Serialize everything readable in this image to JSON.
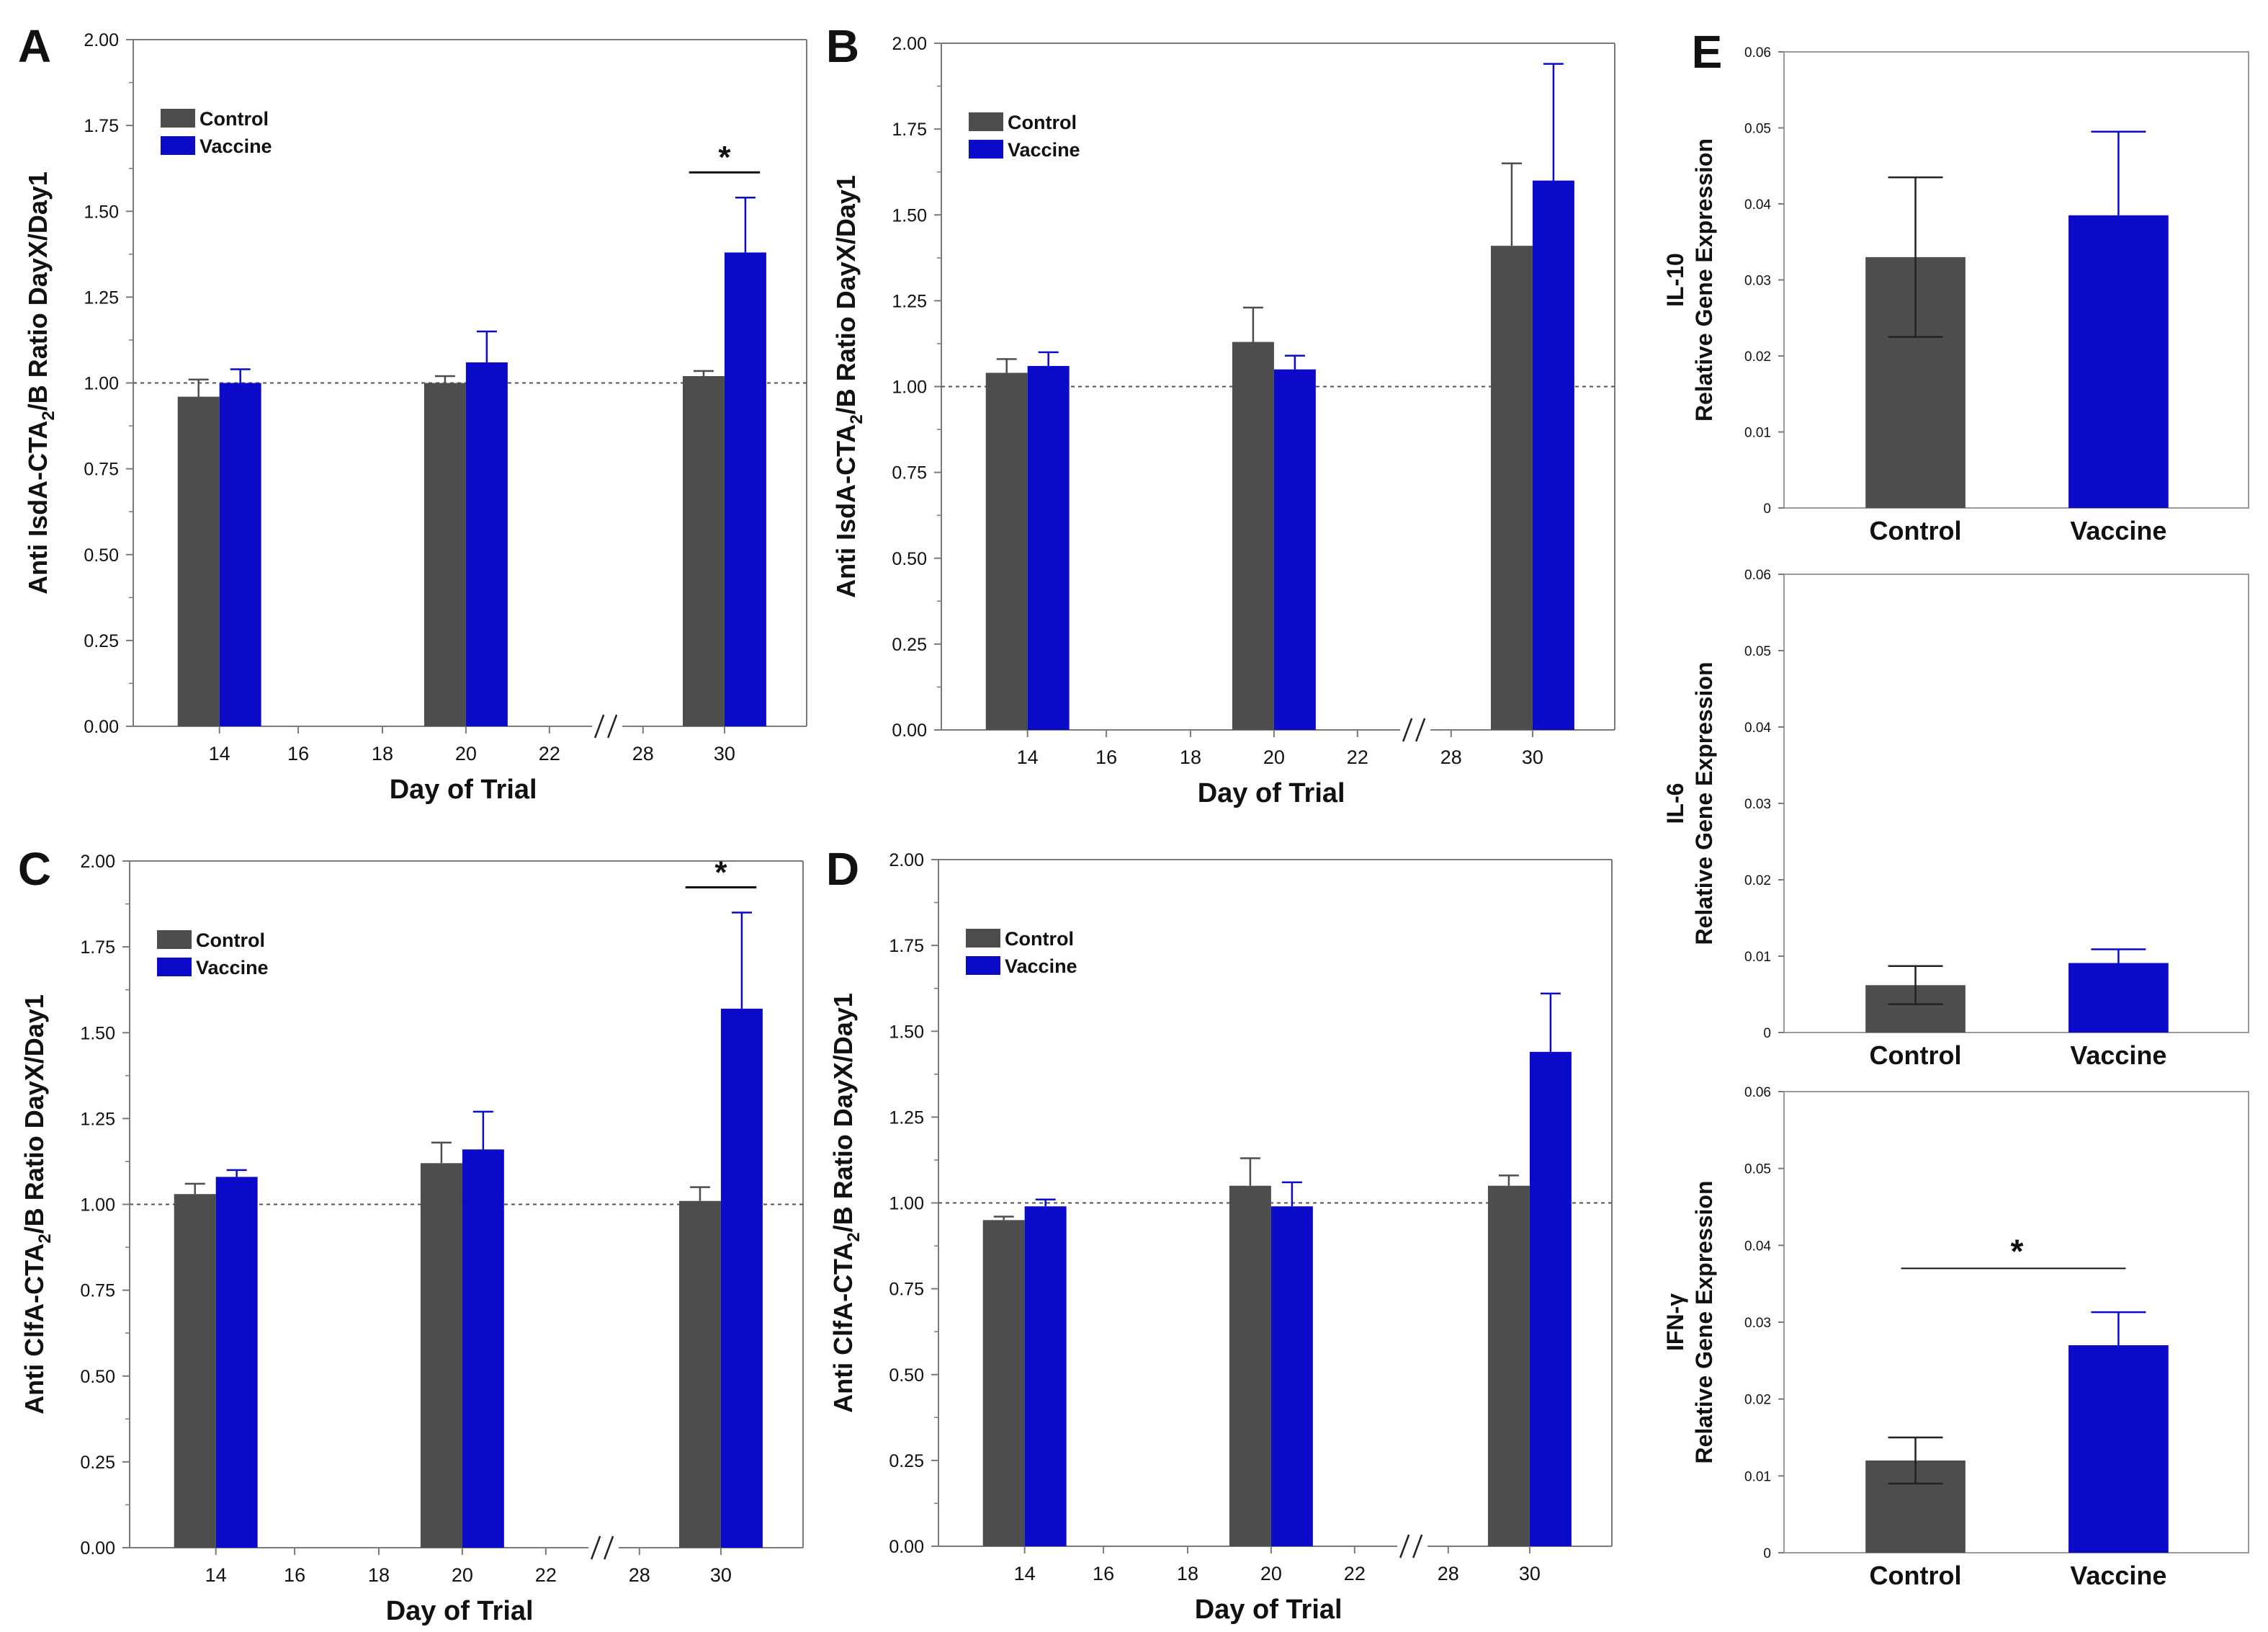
{
  "colors": {
    "control": "#4d4d4d",
    "vaccine": "#0a0ac8",
    "axis": "#7a7a7a",
    "text": "#111111"
  },
  "chart_data": [
    {
      "panel": "A",
      "type": "bar",
      "xlabel": "Day of Trial",
      "ylabel_parts": [
        "Anti IsdA-CTA",
        "2",
        "/B Ratio DayX/Day1"
      ],
      "ylim": [
        0,
        2
      ],
      "yticks": [
        "0.00",
        "0.25",
        "0.50",
        "0.75",
        "1.00",
        "1.25",
        "1.50",
        "1.75",
        "2.00"
      ],
      "xticks": [
        "14",
        "16",
        "18",
        "20",
        "22",
        "28",
        "30"
      ],
      "reference_line": 1.0,
      "legend": [
        "Control",
        "Vaccine"
      ],
      "legend_position": "top-left",
      "categories": [
        "14",
        "20",
        "30"
      ],
      "series": [
        {
          "name": "Control",
          "values": [
            0.96,
            1.0,
            1.02
          ],
          "errors": [
            0.05,
            0.02,
            0.015
          ]
        },
        {
          "name": "Vaccine",
          "values": [
            1.0,
            1.06,
            1.38
          ],
          "errors": [
            0.04,
            0.09,
            0.16
          ]
        }
      ],
      "significance": [
        {
          "category": "30",
          "label": "*"
        }
      ]
    },
    {
      "panel": "B",
      "type": "bar",
      "xlabel": "Day of Trial",
      "ylabel_parts": [
        "Anti IsdA-CTA",
        "2",
        "/B Ratio DayX/Day1"
      ],
      "ylim": [
        0,
        2
      ],
      "yticks": [
        "0.00",
        "0.25",
        "0.50",
        "0.75",
        "1.00",
        "1.25",
        "1.50",
        "1.75",
        "2.00"
      ],
      "xticks": [
        "14",
        "16",
        "18",
        "20",
        "22",
        "28",
        "30"
      ],
      "reference_line": 1.0,
      "legend": [
        "Control",
        "Vaccine"
      ],
      "legend_position": "top-left",
      "categories": [
        "14",
        "20",
        "30"
      ],
      "series": [
        {
          "name": "Control",
          "values": [
            1.04,
            1.13,
            1.41
          ],
          "errors": [
            0.04,
            0.1,
            0.24
          ]
        },
        {
          "name": "Vaccine",
          "values": [
            1.06,
            1.05,
            1.6
          ],
          "errors": [
            0.04,
            0.04,
            0.34
          ]
        }
      ],
      "significance": []
    },
    {
      "panel": "C",
      "type": "bar",
      "xlabel": "Day of Trial",
      "ylabel_parts": [
        "Anti ClfA-CTA",
        "2",
        "/B Ratio DayX/Day1"
      ],
      "ylim": [
        0,
        2
      ],
      "yticks": [
        "0.00",
        "0.25",
        "0.50",
        "0.75",
        "1.00",
        "1.25",
        "1.50",
        "1.75",
        "2.00"
      ],
      "xticks": [
        "14",
        "16",
        "18",
        "20",
        "22",
        "28",
        "30"
      ],
      "reference_line": 1.0,
      "legend": [
        "Control",
        "Vaccine"
      ],
      "legend_position": "top-left",
      "categories": [
        "14",
        "20",
        "30"
      ],
      "series": [
        {
          "name": "Control",
          "values": [
            1.03,
            1.12,
            1.01
          ],
          "errors": [
            0.03,
            0.06,
            0.04
          ]
        },
        {
          "name": "Vaccine",
          "values": [
            1.08,
            1.16,
            1.57
          ],
          "errors": [
            0.02,
            0.11,
            0.28
          ]
        }
      ],
      "significance": [
        {
          "category": "30",
          "label": "*"
        }
      ]
    },
    {
      "panel": "D",
      "type": "bar",
      "xlabel": "Day of Trial",
      "ylabel_parts": [
        "Anti ClfA-CTA",
        "2",
        "/B Ratio DayX/Day1"
      ],
      "ylim": [
        0,
        2
      ],
      "yticks": [
        "0.00",
        "0.25",
        "0.50",
        "0.75",
        "1.00",
        "1.25",
        "1.50",
        "1.75",
        "2.00"
      ],
      "xticks": [
        "14",
        "16",
        "18",
        "20",
        "22",
        "28",
        "30"
      ],
      "reference_line": 1.0,
      "legend": [
        "Control",
        "Vaccine"
      ],
      "legend_position": "top-left",
      "categories": [
        "14",
        "20",
        "30"
      ],
      "series": [
        {
          "name": "Control",
          "values": [
            0.95,
            1.05,
            1.05
          ],
          "errors": [
            0.01,
            0.08,
            0.03
          ]
        },
        {
          "name": "Vaccine",
          "values": [
            0.99,
            0.99,
            1.44
          ],
          "errors": [
            0.02,
            0.07,
            0.17
          ]
        }
      ],
      "significance": []
    },
    {
      "panel": "E",
      "type": "bar",
      "ylabel_top": "IL-10",
      "ylabel_bottom": "Relative Gene Expression",
      "ylim": [
        0,
        0.06
      ],
      "yticks": [
        "0",
        "0.01",
        "0.02",
        "0.03",
        "0.04",
        "0.05",
        "0.06"
      ],
      "categories": [
        "Control",
        "Vaccine"
      ],
      "values": [
        0.033,
        0.0385
      ],
      "errors": [
        0.0105,
        0.011
      ],
      "significance": []
    },
    {
      "panel": "",
      "type": "bar",
      "ylabel_top": "IL-6",
      "ylabel_bottom": "Relative Gene Expression",
      "ylim": [
        0,
        0.06
      ],
      "yticks": [
        "0",
        "0.01",
        "0.02",
        "0.03",
        "0.04",
        "0.05",
        "0.06"
      ],
      "categories": [
        "Control",
        "Vaccine"
      ],
      "values": [
        0.0062,
        0.0091
      ],
      "errors": [
        0.0025,
        0.0018
      ],
      "significance": []
    },
    {
      "panel": "",
      "type": "bar",
      "ylabel_top": "IFN-γ",
      "ylabel_bottom": "Relative Gene Expression",
      "ylim": [
        0,
        0.06
      ],
      "yticks": [
        "0",
        "0.01",
        "0.02",
        "0.03",
        "0.04",
        "0.05",
        "0.06"
      ],
      "categories": [
        "Control",
        "Vaccine"
      ],
      "values": [
        0.012,
        0.027
      ],
      "errors": [
        0.003,
        0.0043
      ],
      "significance": [
        {
          "label": "*"
        }
      ]
    }
  ]
}
